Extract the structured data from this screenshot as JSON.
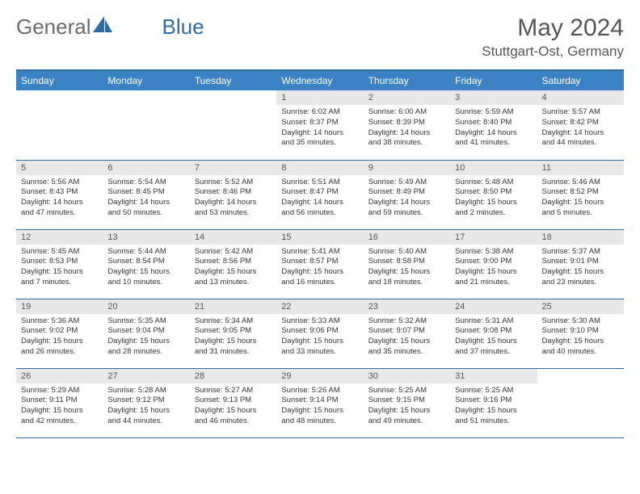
{
  "logo": {
    "text_general": "General",
    "text_blue": "Blue"
  },
  "title": "May 2024",
  "location": "Stuttgart-Ost, Germany",
  "colors": {
    "header_bg": "#3b82c4",
    "header_border": "#2f6aa0",
    "daynum_bg": "#e8e8e8",
    "text": "#333333",
    "title_text": "#555555",
    "logo_gray": "#6b6b6b",
    "logo_blue": "#2f6aa0"
  },
  "day_headers": [
    "Sunday",
    "Monday",
    "Tuesday",
    "Wednesday",
    "Thursday",
    "Friday",
    "Saturday"
  ],
  "weeks": [
    [
      {
        "n": "",
        "lines": []
      },
      {
        "n": "",
        "lines": []
      },
      {
        "n": "",
        "lines": []
      },
      {
        "n": "1",
        "lines": [
          "Sunrise: 6:02 AM",
          "Sunset: 8:37 PM",
          "Daylight: 14 hours",
          "and 35 minutes."
        ]
      },
      {
        "n": "2",
        "lines": [
          "Sunrise: 6:00 AM",
          "Sunset: 8:39 PM",
          "Daylight: 14 hours",
          "and 38 minutes."
        ]
      },
      {
        "n": "3",
        "lines": [
          "Sunrise: 5:59 AM",
          "Sunset: 8:40 PM",
          "Daylight: 14 hours",
          "and 41 minutes."
        ]
      },
      {
        "n": "4",
        "lines": [
          "Sunrise: 5:57 AM",
          "Sunset: 8:42 PM",
          "Daylight: 14 hours",
          "and 44 minutes."
        ]
      }
    ],
    [
      {
        "n": "5",
        "lines": [
          "Sunrise: 5:56 AM",
          "Sunset: 8:43 PM",
          "Daylight: 14 hours",
          "and 47 minutes."
        ]
      },
      {
        "n": "6",
        "lines": [
          "Sunrise: 5:54 AM",
          "Sunset: 8:45 PM",
          "Daylight: 14 hours",
          "and 50 minutes."
        ]
      },
      {
        "n": "7",
        "lines": [
          "Sunrise: 5:52 AM",
          "Sunset: 8:46 PM",
          "Daylight: 14 hours",
          "and 53 minutes."
        ]
      },
      {
        "n": "8",
        "lines": [
          "Sunrise: 5:51 AM",
          "Sunset: 8:47 PM",
          "Daylight: 14 hours",
          "and 56 minutes."
        ]
      },
      {
        "n": "9",
        "lines": [
          "Sunrise: 5:49 AM",
          "Sunset: 8:49 PM",
          "Daylight: 14 hours",
          "and 59 minutes."
        ]
      },
      {
        "n": "10",
        "lines": [
          "Sunrise: 5:48 AM",
          "Sunset: 8:50 PM",
          "Daylight: 15 hours",
          "and 2 minutes."
        ]
      },
      {
        "n": "11",
        "lines": [
          "Sunrise: 5:46 AM",
          "Sunset: 8:52 PM",
          "Daylight: 15 hours",
          "and 5 minutes."
        ]
      }
    ],
    [
      {
        "n": "12",
        "lines": [
          "Sunrise: 5:45 AM",
          "Sunset: 8:53 PM",
          "Daylight: 15 hours",
          "and 7 minutes."
        ]
      },
      {
        "n": "13",
        "lines": [
          "Sunrise: 5:44 AM",
          "Sunset: 8:54 PM",
          "Daylight: 15 hours",
          "and 10 minutes."
        ]
      },
      {
        "n": "14",
        "lines": [
          "Sunrise: 5:42 AM",
          "Sunset: 8:56 PM",
          "Daylight: 15 hours",
          "and 13 minutes."
        ]
      },
      {
        "n": "15",
        "lines": [
          "Sunrise: 5:41 AM",
          "Sunset: 8:57 PM",
          "Daylight: 15 hours",
          "and 16 minutes."
        ]
      },
      {
        "n": "16",
        "lines": [
          "Sunrise: 5:40 AM",
          "Sunset: 8:58 PM",
          "Daylight: 15 hours",
          "and 18 minutes."
        ]
      },
      {
        "n": "17",
        "lines": [
          "Sunrise: 5:38 AM",
          "Sunset: 9:00 PM",
          "Daylight: 15 hours",
          "and 21 minutes."
        ]
      },
      {
        "n": "18",
        "lines": [
          "Sunrise: 5:37 AM",
          "Sunset: 9:01 PM",
          "Daylight: 15 hours",
          "and 23 minutes."
        ]
      }
    ],
    [
      {
        "n": "19",
        "lines": [
          "Sunrise: 5:36 AM",
          "Sunset: 9:02 PM",
          "Daylight: 15 hours",
          "and 26 minutes."
        ]
      },
      {
        "n": "20",
        "lines": [
          "Sunrise: 5:35 AM",
          "Sunset: 9:04 PM",
          "Daylight: 15 hours",
          "and 28 minutes."
        ]
      },
      {
        "n": "21",
        "lines": [
          "Sunrise: 5:34 AM",
          "Sunset: 9:05 PM",
          "Daylight: 15 hours",
          "and 31 minutes."
        ]
      },
      {
        "n": "22",
        "lines": [
          "Sunrise: 5:33 AM",
          "Sunset: 9:06 PM",
          "Daylight: 15 hours",
          "and 33 minutes."
        ]
      },
      {
        "n": "23",
        "lines": [
          "Sunrise: 5:32 AM",
          "Sunset: 9:07 PM",
          "Daylight: 15 hours",
          "and 35 minutes."
        ]
      },
      {
        "n": "24",
        "lines": [
          "Sunrise: 5:31 AM",
          "Sunset: 9:08 PM",
          "Daylight: 15 hours",
          "and 37 minutes."
        ]
      },
      {
        "n": "25",
        "lines": [
          "Sunrise: 5:30 AM",
          "Sunset: 9:10 PM",
          "Daylight: 15 hours",
          "and 40 minutes."
        ]
      }
    ],
    [
      {
        "n": "26",
        "lines": [
          "Sunrise: 5:29 AM",
          "Sunset: 9:11 PM",
          "Daylight: 15 hours",
          "and 42 minutes."
        ]
      },
      {
        "n": "27",
        "lines": [
          "Sunrise: 5:28 AM",
          "Sunset: 9:12 PM",
          "Daylight: 15 hours",
          "and 44 minutes."
        ]
      },
      {
        "n": "28",
        "lines": [
          "Sunrise: 5:27 AM",
          "Sunset: 9:13 PM",
          "Daylight: 15 hours",
          "and 46 minutes."
        ]
      },
      {
        "n": "29",
        "lines": [
          "Sunrise: 5:26 AM",
          "Sunset: 9:14 PM",
          "Daylight: 15 hours",
          "and 48 minutes."
        ]
      },
      {
        "n": "30",
        "lines": [
          "Sunrise: 5:25 AM",
          "Sunset: 9:15 PM",
          "Daylight: 15 hours",
          "and 49 minutes."
        ]
      },
      {
        "n": "31",
        "lines": [
          "Sunrise: 5:25 AM",
          "Sunset: 9:16 PM",
          "Daylight: 15 hours",
          "and 51 minutes."
        ]
      },
      {
        "n": "",
        "lines": []
      }
    ]
  ]
}
